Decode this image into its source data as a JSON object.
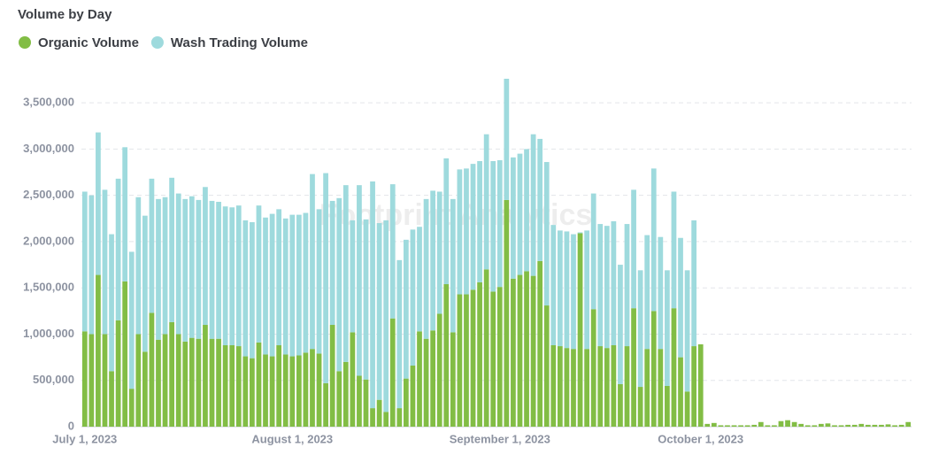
{
  "chart_data": {
    "type": "stacked_bar",
    "title": "Volume by Day",
    "watermark": "Footprint Analytics",
    "categories": [
      "July 1, 2023",
      null,
      null,
      null,
      null,
      null,
      null,
      null,
      null,
      null,
      null,
      null,
      null,
      null,
      null,
      null,
      null,
      null,
      null,
      null,
      null,
      null,
      null,
      null,
      null,
      null,
      null,
      null,
      null,
      null,
      null,
      "August 1, 2023",
      null,
      null,
      null,
      null,
      null,
      null,
      null,
      null,
      null,
      null,
      null,
      null,
      null,
      null,
      null,
      null,
      null,
      null,
      null,
      null,
      null,
      null,
      null,
      null,
      null,
      null,
      null,
      null,
      null,
      null,
      "September 1, 2023",
      null,
      null,
      null,
      null,
      null,
      null,
      null,
      null,
      null,
      null,
      null,
      null,
      null,
      null,
      null,
      null,
      null,
      null,
      null,
      null,
      null,
      null,
      null,
      null,
      null,
      null,
      null,
      null,
      null,
      "October 1, 2023",
      null,
      null,
      null,
      null,
      null,
      null,
      null,
      null,
      null,
      null,
      null,
      null,
      null,
      null,
      null,
      null,
      null,
      null,
      null,
      null,
      null,
      null,
      null,
      null,
      null,
      null,
      null,
      null,
      null,
      null,
      null
    ],
    "series": [
      {
        "name": "Organic Volume",
        "color": "#82bd45",
        "values": [
          1030000,
          1000000,
          1640000,
          1000000,
          600000,
          1150000,
          1570000,
          410000,
          1000000,
          810000,
          1230000,
          940000,
          1000000,
          1130000,
          1000000,
          920000,
          960000,
          950000,
          1100000,
          950000,
          950000,
          880000,
          880000,
          870000,
          760000,
          740000,
          910000,
          780000,
          760000,
          880000,
          780000,
          760000,
          770000,
          800000,
          840000,
          790000,
          470000,
          1100000,
          600000,
          700000,
          1020000,
          550000,
          510000,
          200000,
          290000,
          160000,
          1170000,
          200000,
          520000,
          660000,
          1030000,
          950000,
          1040000,
          1220000,
          1540000,
          1020000,
          1430000,
          1430000,
          1480000,
          1560000,
          1700000,
          1460000,
          1510000,
          2450000,
          1600000,
          1640000,
          1680000,
          1630000,
          1790000,
          1310000,
          880000,
          870000,
          850000,
          840000,
          2090000,
          840000,
          1270000,
          870000,
          850000,
          880000,
          460000,
          870000,
          1280000,
          430000,
          840000,
          1250000,
          840000,
          440000,
          1280000,
          750000,
          380000,
          870000,
          890000,
          30000,
          40000,
          15000,
          15000,
          15000,
          15000,
          15000,
          20000,
          50000,
          15000,
          15000,
          60000,
          70000,
          50000,
          30000,
          15000,
          15000,
          30000,
          35000,
          15000,
          15000,
          20000,
          20000,
          30000,
          20000,
          20000,
          20000,
          25000,
          15000,
          20000,
          50000
        ]
      },
      {
        "name": "Wash Trading Volume",
        "color": "#9edadd",
        "values": [
          1510000,
          1500000,
          1540000,
          1560000,
          1480000,
          1530000,
          1450000,
          1480000,
          1480000,
          1470000,
          1450000,
          1520000,
          1480000,
          1560000,
          1520000,
          1540000,
          1530000,
          1500000,
          1490000,
          1490000,
          1480000,
          1500000,
          1490000,
          1520000,
          1470000,
          1470000,
          1480000,
          1480000,
          1540000,
          1470000,
          1470000,
          1530000,
          1520000,
          1510000,
          1890000,
          1560000,
          2270000,
          1340000,
          1870000,
          1910000,
          1210000,
          2060000,
          1730000,
          2450000,
          1910000,
          2070000,
          1450000,
          1600000,
          1500000,
          1470000,
          1130000,
          1510000,
          1510000,
          1320000,
          1360000,
          1440000,
          1350000,
          1360000,
          1360000,
          1310000,
          1460000,
          1410000,
          1370000,
          1310000,
          1310000,
          1310000,
          1320000,
          1530000,
          1320000,
          1550000,
          1300000,
          1250000,
          1260000,
          1240000,
          10000,
          1280000,
          1250000,
          1320000,
          1320000,
          1340000,
          1290000,
          1320000,
          1280000,
          1260000,
          1230000,
          1540000,
          1210000,
          1250000,
          1260000,
          1290000,
          1310000,
          1360000,
          0,
          0,
          0,
          0,
          0,
          0,
          0,
          0,
          0,
          0,
          0,
          0,
          0,
          0,
          0,
          0,
          0,
          0,
          0,
          0,
          0,
          0,
          0,
          0,
          0,
          0,
          0,
          0,
          0,
          0,
          0,
          0
        ]
      }
    ],
    "ylim": [
      0,
      3750000
    ],
    "yticks": [
      0,
      {
        "value": 500000,
        "label": "500,000"
      },
      {
        "value": 1000000,
        "label": "1,000,000"
      },
      {
        "value": 1500000,
        "label": "1,500,000"
      },
      {
        "value": 2000000,
        "label": "2,000,000"
      },
      {
        "value": 2500000,
        "label": "2,500,000"
      },
      {
        "value": 3000000,
        "label": "3,000,000"
      },
      {
        "value": 3500000,
        "label": "3,500,000"
      }
    ],
    "grid": true,
    "legend": "top-left"
  }
}
